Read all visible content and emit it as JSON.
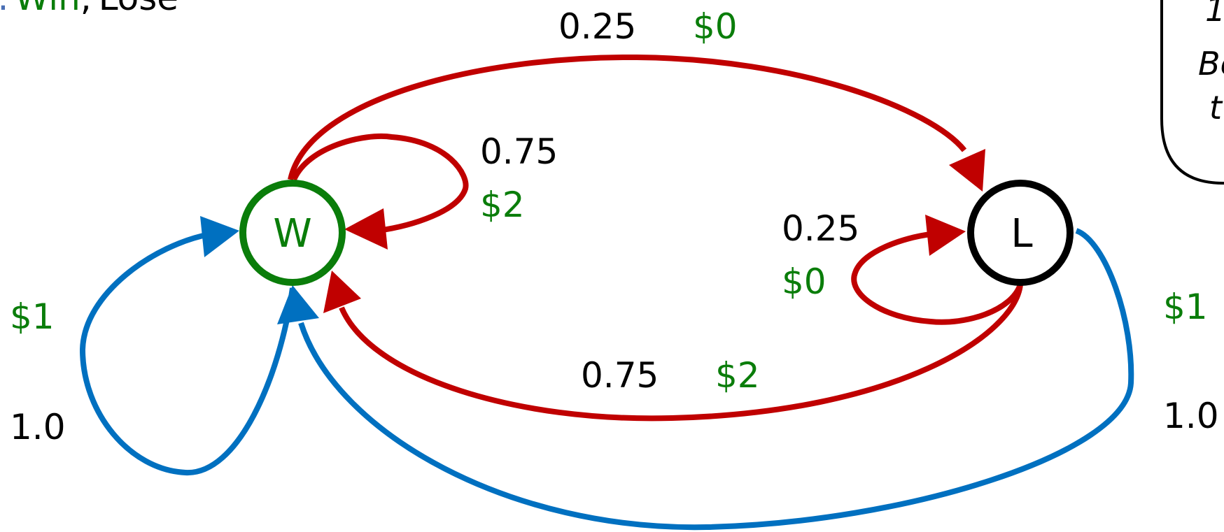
{
  "colors": {
    "red_edge": "#c00000",
    "blue_edge": "#0070c0",
    "win_green": "#0a7d0a",
    "lose_black": "#000000",
    "header_blue": "#4a6fb5"
  },
  "header": {
    "prefix": ":",
    "win": "Win",
    "separator": ",",
    "lose": "Lose"
  },
  "nodes": {
    "win": {
      "label": "W"
    },
    "lose": {
      "label": "L"
    }
  },
  "edges": {
    "w_to_l_top": {
      "prob": "0.25",
      "reward": "$0"
    },
    "w_self_red": {
      "prob": "0.75",
      "reward": "$2"
    },
    "w_self_blue": {
      "prob": "1.0",
      "reward": "$1"
    },
    "l_self_red": {
      "prob": "0.25",
      "reward": "$0"
    },
    "l_to_w_red": {
      "prob": "0.75",
      "reward": "$2"
    },
    "l_to_w_blue": {
      "prob": "1.0",
      "reward": "$1"
    }
  },
  "side_box": {
    "line1": "1",
    "line2": "Be",
    "line3": "t"
  }
}
